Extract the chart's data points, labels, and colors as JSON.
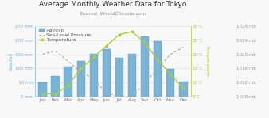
{
  "title": "Average Monthly Weather Data for Tokyo",
  "subtitle": "Source: WorldClimate.com",
  "months": [
    "Jan",
    "Feb",
    "Mar",
    "Apr",
    "May",
    "Jun",
    "Jul",
    "Aug",
    "Sep",
    "Oct",
    "Nov",
    "Dec"
  ],
  "rainfall_mm": [
    52,
    72,
    107,
    125,
    152,
    168,
    138,
    152,
    212,
    195,
    97,
    55
  ],
  "temperature_c": [
    6,
    6,
    9,
    15,
    19,
    23,
    27,
    28,
    24,
    18,
    13,
    8
  ],
  "sea_level_pressure_mb": [
    1020,
    1021,
    1018,
    1015,
    1013,
    1009,
    1008,
    1008,
    1012,
    1016,
    1020,
    1022
  ],
  "bar_color": "#7ab3d4",
  "bar_edge_color": "#5a9abf",
  "temp_color": "#aacc44",
  "pressure_color": "#aaaaaa",
  "left_axis_color": "#7ab3d4",
  "right_axis_temp_color": "#aacc44",
  "bg_color": "#f8f8f8",
  "grid_color": "#e0e0e0",
  "title_fontsize": 6.5,
  "subtitle_fontsize": 4.5,
  "label_fontsize": 4.5,
  "tick_fontsize": 4.0,
  "legend_fontsize": 4.2,
  "ylabel": "Rainfall",
  "ylim_rain": [
    0,
    250
  ],
  "ylim_temp": [
    5,
    30
  ],
  "ylim_pressure": [
    1008,
    1028
  ],
  "yticks_rain": [
    0,
    50,
    100,
    150,
    200,
    250
  ],
  "ytick_labels_rain": [
    "0 mm",
    "50 mm",
    "100 mm",
    "150 mm",
    "200 mm",
    "250 mm"
  ],
  "yticks_temp": [
    5,
    10,
    15,
    20,
    25,
    30
  ],
  "ytick_labels_temp": [
    "5°C",
    "10°C",
    "15°C",
    "20°C",
    "25°C",
    "30°C"
  ],
  "yticks_pressure": [
    1008,
    1012,
    1016,
    1020,
    1024,
    1028
  ],
  "ytick_labels_pressure": [
    "1008 mb",
    "1012 mb",
    "1016 mb",
    "1020 mb",
    "1024 mb",
    "1028 mb"
  ]
}
